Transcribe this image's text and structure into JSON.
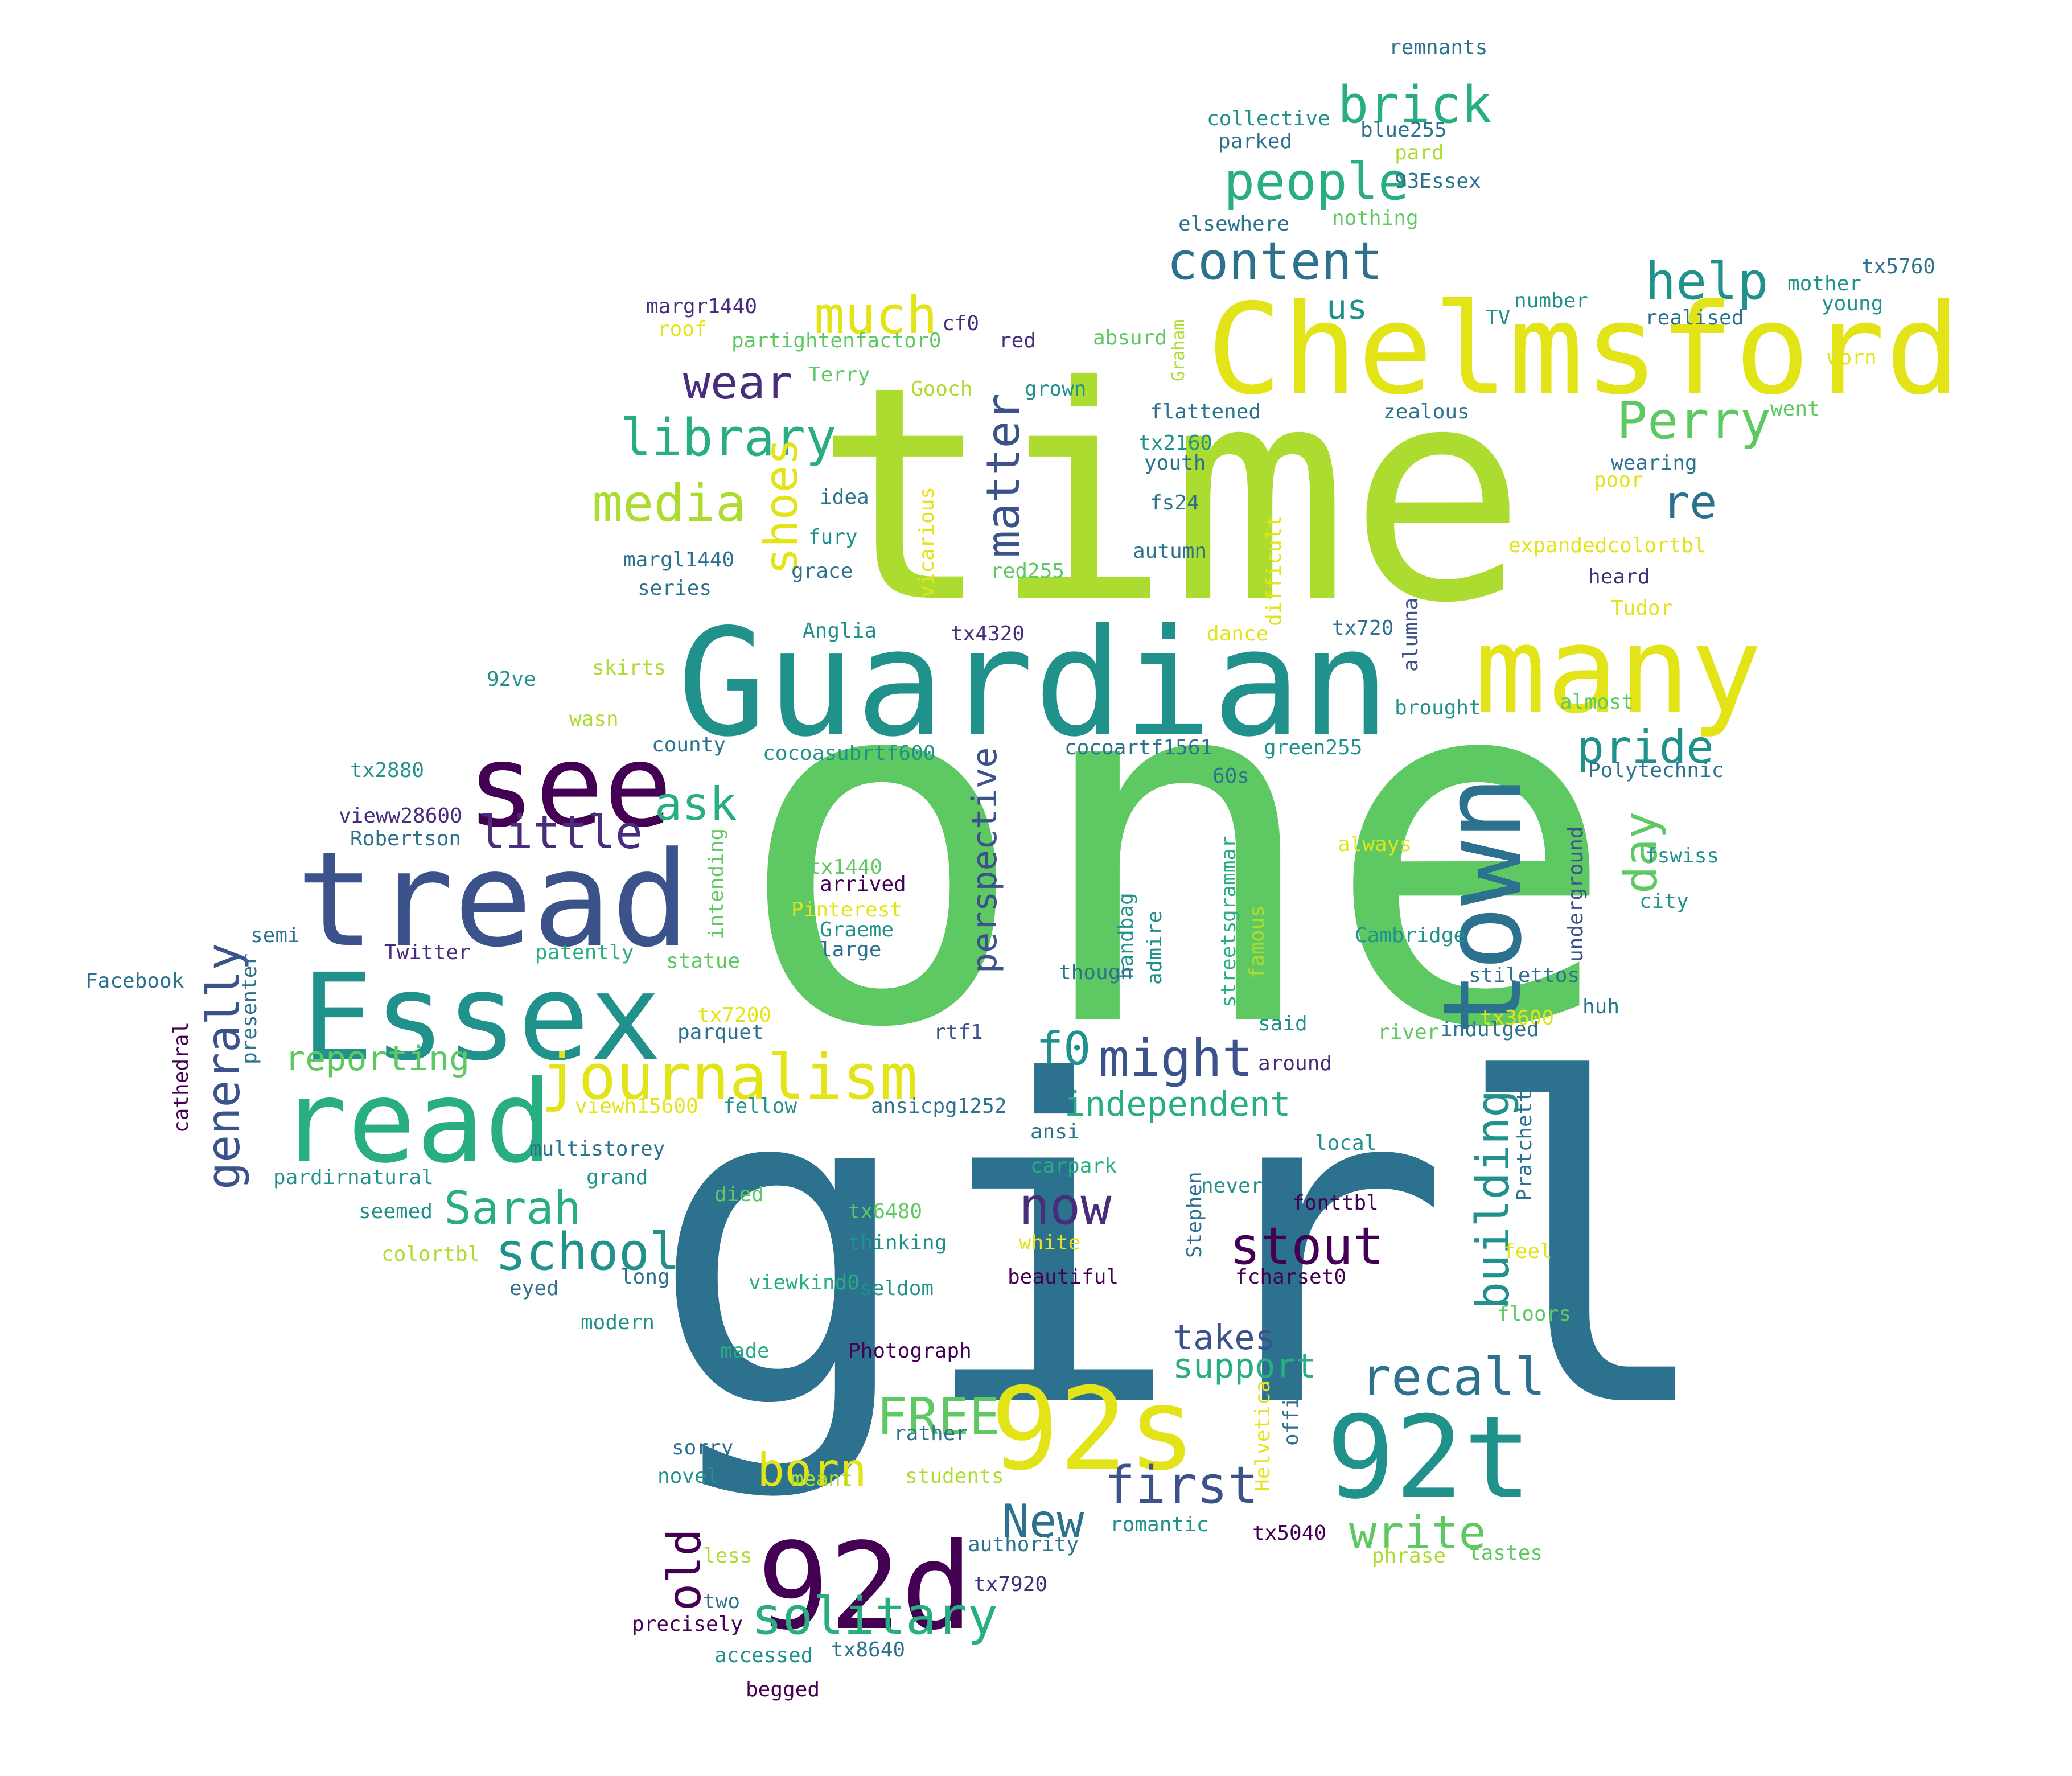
{
  "palette": {
    "c0": "#440154",
    "c1": "#472d7b",
    "c2": "#3b528b",
    "c3": "#2c728e",
    "c4": "#21918c",
    "c5": "#28ae80",
    "c6": "#5ec962",
    "c7": "#addc30",
    "c8": "#e3e418",
    "c9": "#fde725"
  },
  "words": [
    "one",
    "girl",
    "time",
    "Guardian",
    "Chelmsford",
    "tread",
    "Essex",
    "read",
    "many",
    "see",
    "town",
    "92d",
    "92s",
    "92t",
    "journalism",
    "content",
    "people",
    "brick",
    "much",
    "wear",
    "library",
    "media",
    "shoes",
    "matter",
    "help",
    "Perry",
    "re",
    "us",
    "ask",
    "little",
    "pride",
    "day",
    "perspective",
    "f0",
    "might",
    "independent",
    "generally",
    "reporting",
    "Sarah",
    "school",
    "now",
    "stout",
    "building",
    "recall",
    "takes",
    "support",
    "FREE",
    "born",
    "first",
    "New",
    "write",
    "old",
    "solitary",
    "remnants",
    "collective",
    "blue255",
    "parked",
    "pard",
    "93Essex",
    "nothing",
    "elsewhere",
    "tx5760",
    "mother",
    "young",
    "number",
    "realised",
    "TV",
    "worn",
    "went",
    "margr1440",
    "cf0",
    "roof",
    "partightenfactor0",
    "red",
    "absurd",
    "Graham",
    "Terry",
    "Gooch",
    "grown",
    "flattened",
    "zealous",
    "tx2160",
    "youth",
    "wearing",
    "poor",
    "fs24",
    "idea",
    "vicarious",
    "difficult",
    "expandedcolortbl",
    "autumn",
    "fury",
    "margl1440",
    "red255",
    "heard",
    "grace",
    "series",
    "tx720",
    "Tudor",
    "Anglia",
    "tx4320",
    "dance",
    "alumna",
    "92ve",
    "skirts",
    "brought",
    "almost",
    "wasn",
    "county",
    "cocoasubrtf600",
    "cocoartf1561",
    "green255",
    "Polytechnic",
    "tx2880",
    "60s",
    "vieww28600",
    "always",
    "fswiss",
    "Robertson",
    "intending",
    "tx1440",
    "grammar",
    "arrived",
    "handbag",
    "underground",
    "city",
    "semi",
    "Pinterest",
    "Graeme",
    "Twitter",
    "patently",
    "large",
    "admire",
    "famous",
    "Cambridge",
    "Facebook",
    "statue",
    "though",
    "streets",
    "stilettos",
    "presenter",
    "tx7200",
    "parquet",
    "rtf1",
    "said",
    "tx3600",
    "huh",
    "river",
    "indulged",
    "cathedral",
    "around",
    "viewh15600",
    "fellow",
    "ansicpg1252",
    "Pratchett",
    "ansi",
    "multistorey",
    "local",
    "pardirnatural",
    "grand",
    "carpark",
    "died",
    "never",
    "seemed",
    "tx6480",
    "Stephen",
    "fonttbl",
    "colortbl",
    "thinking",
    "white",
    "feel",
    "eyed",
    "long",
    "viewkind0",
    "seldom",
    "beautiful",
    "fcharset0",
    "modern",
    "floors",
    "made",
    "Photograph",
    "Helvetica",
    "officially",
    "rather",
    "sorry",
    "students",
    "novel",
    "meant",
    "romantic",
    "tx5040",
    "authority",
    "less",
    "phrase",
    "tastes",
    "tx7920",
    "two",
    "precisely",
    "accessed",
    "tx8640",
    "begged"
  ]
}
